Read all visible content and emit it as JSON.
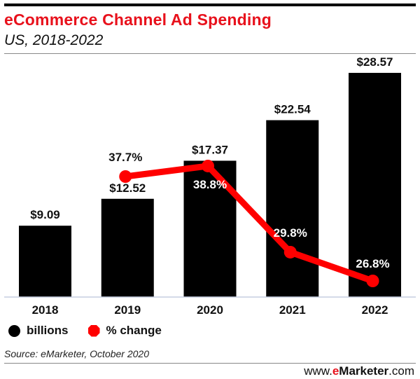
{
  "header": {
    "title": "eCommerce Channel Ad Spending",
    "subtitle": "US, 2018-2022"
  },
  "legend": {
    "items": [
      {
        "label": "billions",
        "marker": "black-circle",
        "color": "#000000"
      },
      {
        "label": "% change",
        "marker": "red-octagon",
        "color": "#ff0000"
      }
    ]
  },
  "footer": {
    "source": "Source: eMarketer, October 2020",
    "brand_prefix": "www.",
    "brand_e": "e",
    "brand_name": "Marketer",
    "brand_suffix": ".com"
  },
  "colors": {
    "title": "#e8111c",
    "bars": "#000000",
    "line": "#ff0000"
  },
  "chart_data": {
    "type": "bar",
    "title": "eCommerce Channel Ad Spending",
    "subtitle": "US, 2018-2022",
    "categories": [
      "2018",
      "2019",
      "2020",
      "2021",
      "2022"
    ],
    "xlabel": "",
    "ylabel": "",
    "ylim": [
      0,
      28.57
    ],
    "grid": false,
    "legend_position": "bottom-left",
    "series": [
      {
        "name": "billions",
        "type": "bar",
        "values": [
          9.09,
          12.52,
          17.37,
          22.54,
          28.57
        ],
        "labels": [
          "$9.09",
          "$12.52",
          "$17.37",
          "$22.54",
          "$28.57"
        ]
      },
      {
        "name": "% change",
        "type": "line",
        "categories": [
          "2019",
          "2020",
          "2021",
          "2022"
        ],
        "values": [
          37.7,
          38.8,
          29.8,
          26.8
        ],
        "labels": [
          "37.7%",
          "38.8%",
          "29.8%",
          "26.8%"
        ]
      }
    ],
    "source": "Source: eMarketer, October 2020"
  }
}
